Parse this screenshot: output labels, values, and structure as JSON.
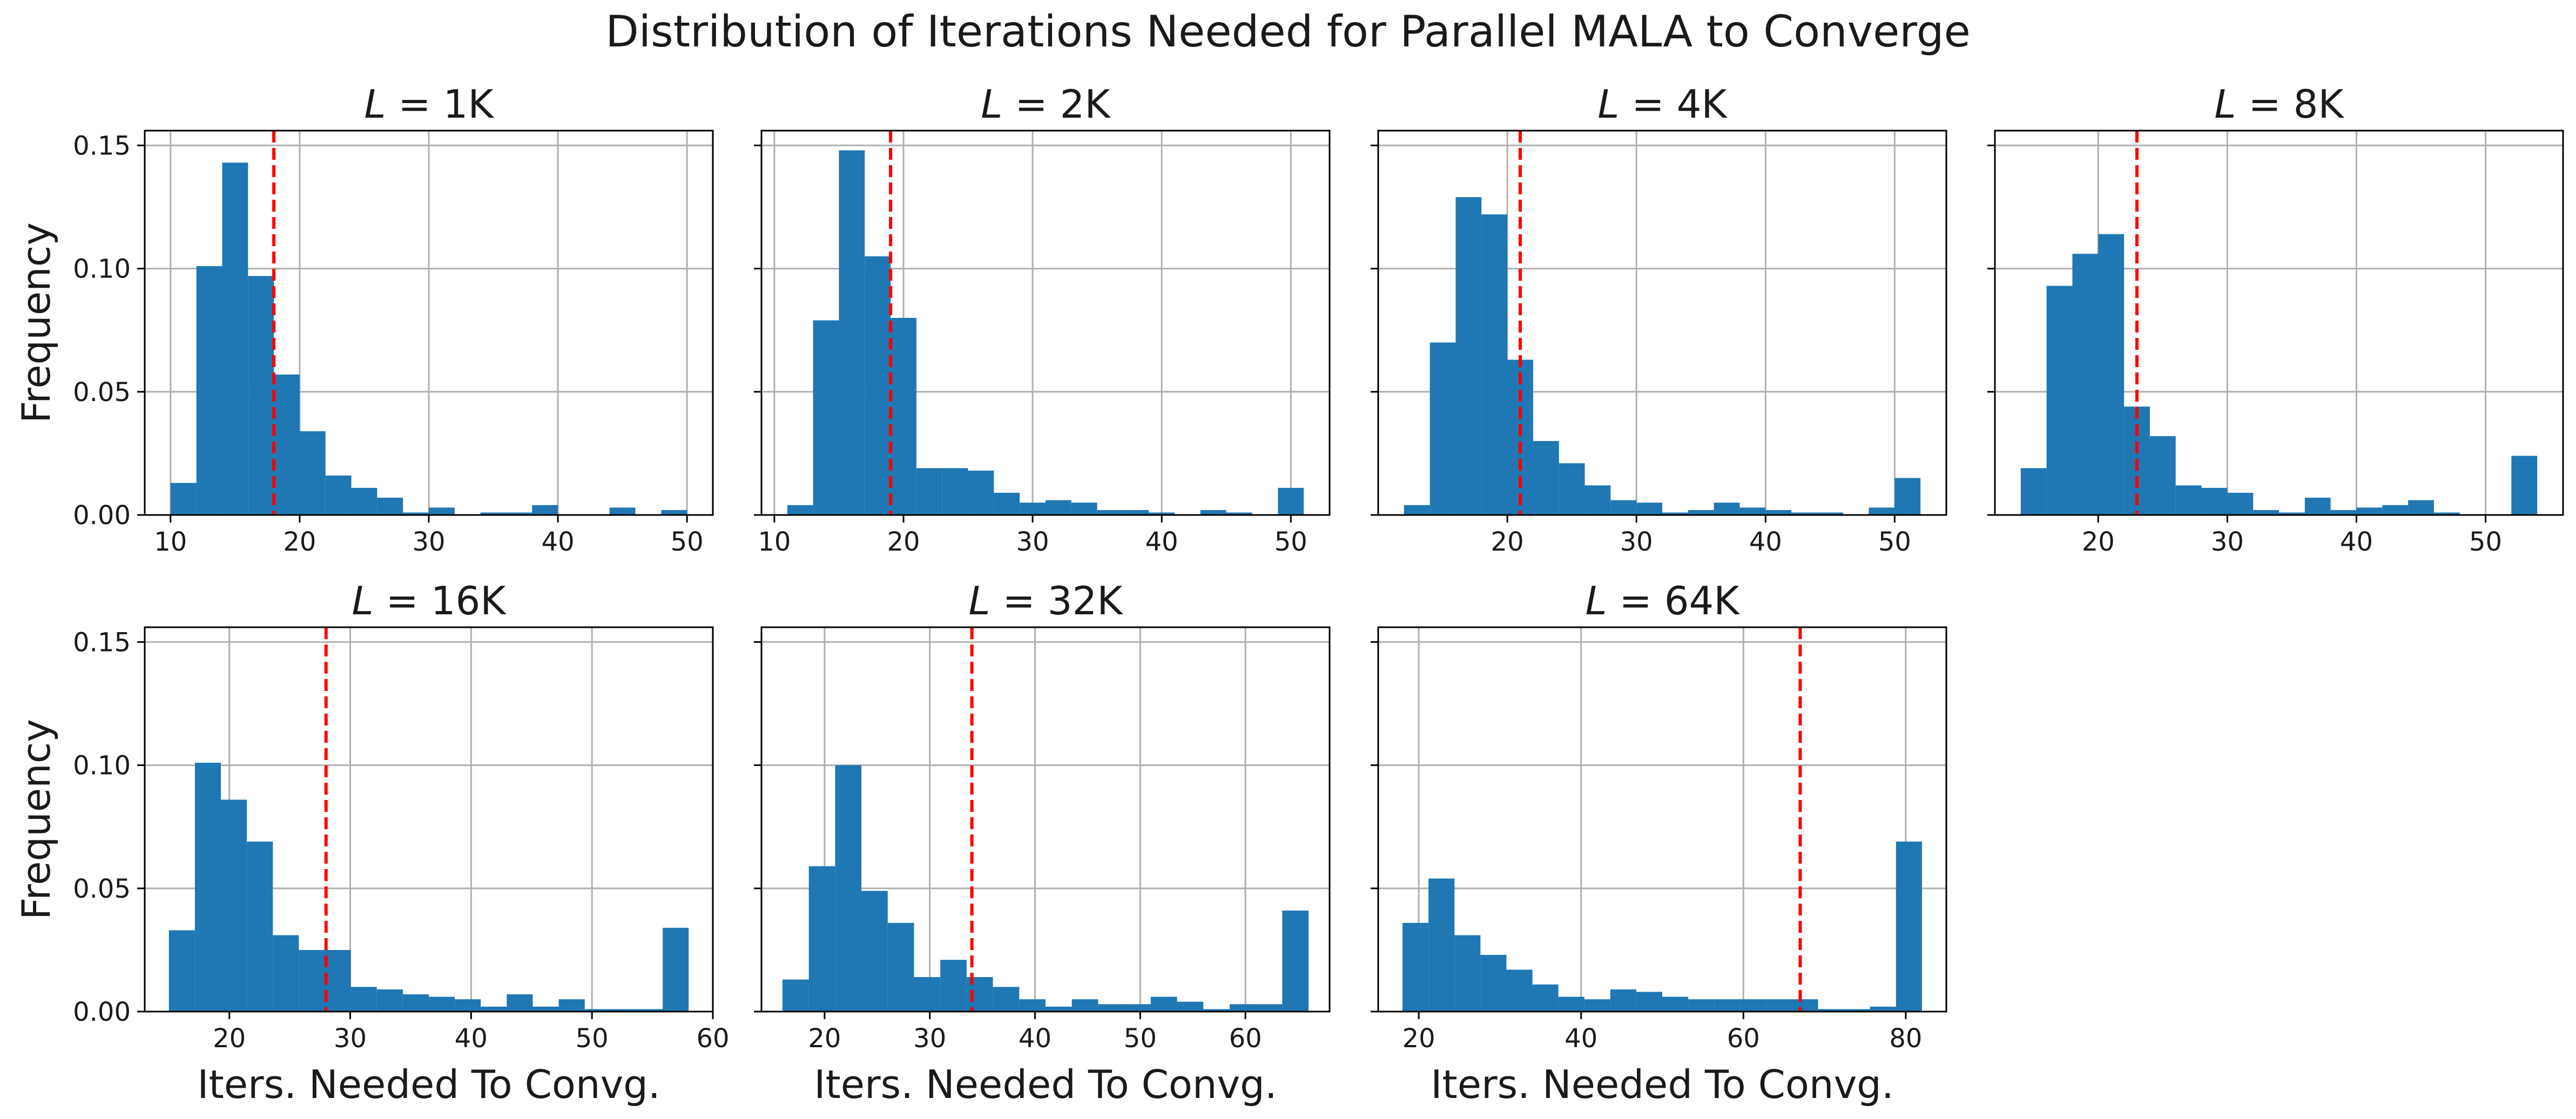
{
  "figure": {
    "title": "Distribution of Iterations Needed for Parallel MALA to Converge",
    "ylabel": "Frequency",
    "xlabel": "Iters. Needed To Convg."
  },
  "colors": {
    "bar": "#1f77b4",
    "median_line": "#ff0000",
    "grid": "#b0b0b0"
  },
  "chart_data": [
    {
      "type": "histogram",
      "title_var": "L",
      "title_value": "1K",
      "xlim": [
        8,
        52
      ],
      "ylim": [
        0,
        0.156
      ],
      "xticks": [
        10,
        20,
        30,
        40,
        50
      ],
      "yticks": [
        0.0,
        0.05,
        0.1,
        0.15
      ],
      "ytick_labels": [
        "0.00",
        "0.05",
        "0.10",
        "0.15"
      ],
      "show_yticklabels": true,
      "bin_edges": [
        10,
        12,
        14,
        16,
        18,
        20,
        22,
        24,
        26,
        28,
        30,
        32,
        34,
        36,
        38,
        40,
        42,
        44,
        46,
        48,
        50
      ],
      "values": [
        0.013,
        0.101,
        0.143,
        0.097,
        0.057,
        0.034,
        0.016,
        0.011,
        0.007,
        0.001,
        0.003,
        0.0,
        0.001,
        0.001,
        0.004,
        0.0,
        0.0,
        0.003,
        0.0,
        0.002
      ],
      "median": 18,
      "xlabel": "",
      "ylabel": "Frequency"
    },
    {
      "type": "histogram",
      "title_var": "L",
      "title_value": "2K",
      "xlim": [
        9,
        53
      ],
      "ylim": [
        0,
        0.156
      ],
      "xticks": [
        10,
        20,
        30,
        40,
        50
      ],
      "yticks": [
        0.0,
        0.05,
        0.1,
        0.15
      ],
      "ytick_labels": [
        "0.00",
        "0.05",
        "0.10",
        "0.15"
      ],
      "show_yticklabels": false,
      "bin_edges": [
        11,
        13,
        15,
        17,
        19,
        21,
        23,
        25,
        27,
        29,
        31,
        33,
        35,
        37,
        39,
        41,
        43,
        45,
        47,
        49,
        51
      ],
      "values": [
        0.004,
        0.079,
        0.148,
        0.105,
        0.08,
        0.019,
        0.019,
        0.018,
        0.009,
        0.005,
        0.006,
        0.005,
        0.002,
        0.002,
        0.001,
        0.0,
        0.002,
        0.001,
        0.0,
        0.011
      ],
      "median": 19,
      "xlabel": "",
      "ylabel": ""
    },
    {
      "type": "histogram",
      "title_var": "L",
      "title_value": "4K",
      "xlim": [
        10,
        54
      ],
      "ylim": [
        0,
        0.156
      ],
      "xticks": [
        20,
        30,
        40,
        50
      ],
      "yticks": [
        0.0,
        0.05,
        0.1,
        0.15
      ],
      "ytick_labels": [
        "0.00",
        "0.05",
        "0.10",
        "0.15"
      ],
      "show_yticklabels": false,
      "bin_edges": [
        12,
        14,
        16,
        18,
        20,
        22,
        24,
        26,
        28,
        30,
        32,
        34,
        36,
        38,
        40,
        42,
        44,
        46,
        48,
        50,
        52
      ],
      "values": [
        0.004,
        0.07,
        0.129,
        0.122,
        0.063,
        0.03,
        0.021,
        0.012,
        0.006,
        0.005,
        0.001,
        0.002,
        0.005,
        0.003,
        0.002,
        0.001,
        0.001,
        0.0,
        0.003,
        0.015
      ],
      "median": 21,
      "xlabel": "",
      "ylabel": ""
    },
    {
      "type": "histogram",
      "title_var": "L",
      "title_value": "8K",
      "xlim": [
        12,
        56
      ],
      "ylim": [
        0,
        0.156
      ],
      "xticks": [
        20,
        30,
        40,
        50
      ],
      "yticks": [
        0.0,
        0.05,
        0.1,
        0.15
      ],
      "ytick_labels": [
        "0.00",
        "0.05",
        "0.10",
        "0.15"
      ],
      "show_yticklabels": false,
      "bin_edges": [
        14,
        16,
        18,
        20,
        22,
        24,
        26,
        28,
        30,
        32,
        34,
        36,
        38,
        40,
        42,
        44,
        46,
        48,
        50,
        52,
        54
      ],
      "values": [
        0.019,
        0.093,
        0.106,
        0.114,
        0.044,
        0.032,
        0.012,
        0.011,
        0.009,
        0.002,
        0.001,
        0.007,
        0.002,
        0.003,
        0.004,
        0.006,
        0.001,
        0.0,
        0.0,
        0.024
      ],
      "median": 23,
      "xlabel": "",
      "ylabel": ""
    },
    {
      "type": "histogram",
      "title_var": "L",
      "title_value": "16K",
      "xlim": [
        13,
        60
      ],
      "ylim": [
        0,
        0.156
      ],
      "xticks": [
        20,
        30,
        40,
        50,
        60
      ],
      "yticks": [
        0.0,
        0.05,
        0.1,
        0.15
      ],
      "ytick_labels": [
        "0.00",
        "0.05",
        "0.10",
        "0.15"
      ],
      "show_yticklabels": true,
      "bin_edges": [
        15,
        17.15,
        19.3,
        21.45,
        23.6,
        25.75,
        27.9,
        30.05,
        32.2,
        34.35,
        36.5,
        38.65,
        40.8,
        42.95,
        45.1,
        47.25,
        49.4,
        51.55,
        53.7,
        55.85,
        58
      ],
      "values": [
        0.033,
        0.101,
        0.086,
        0.069,
        0.031,
        0.025,
        0.025,
        0.01,
        0.009,
        0.007,
        0.006,
        0.005,
        0.002,
        0.007,
        0.002,
        0.005,
        0.001,
        0.001,
        0.001,
        0.034
      ],
      "median": 28,
      "xlabel": "Iters. Needed To Convg.",
      "ylabel": "Frequency"
    },
    {
      "type": "histogram",
      "title_var": "L",
      "title_value": "32K",
      "xlim": [
        14,
        68
      ],
      "ylim": [
        0,
        0.156
      ],
      "xticks": [
        20,
        30,
        40,
        50,
        60
      ],
      "yticks": [
        0.0,
        0.05,
        0.1,
        0.15
      ],
      "ytick_labels": [
        "0.00",
        "0.05",
        "0.10",
        "0.15"
      ],
      "show_yticklabels": false,
      "bin_edges": [
        16,
        18.5,
        21,
        23.5,
        26,
        28.5,
        31,
        33.5,
        36,
        38.5,
        41,
        43.5,
        46,
        48.5,
        51,
        53.5,
        56,
        58.5,
        61,
        63.5,
        66
      ],
      "values": [
        0.013,
        0.059,
        0.1,
        0.049,
        0.036,
        0.014,
        0.021,
        0.014,
        0.01,
        0.005,
        0.002,
        0.005,
        0.003,
        0.003,
        0.006,
        0.004,
        0.001,
        0.003,
        0.003,
        0.041
      ],
      "median": 34,
      "xlabel": "Iters. Needed To Convg.",
      "ylabel": ""
    },
    {
      "type": "histogram",
      "title_var": "L",
      "title_value": "64K",
      "xlim": [
        15,
        85
      ],
      "ylim": [
        0,
        0.156
      ],
      "xticks": [
        20,
        40,
        60,
        80
      ],
      "yticks": [
        0.0,
        0.05,
        0.1,
        0.15
      ],
      "ytick_labels": [
        "0.00",
        "0.05",
        "0.10",
        "0.15"
      ],
      "show_yticklabels": false,
      "bin_edges": [
        18,
        21.2,
        24.4,
        27.6,
        30.8,
        34,
        37.2,
        40.4,
        43.6,
        46.8,
        50,
        53.2,
        56.4,
        59.6,
        62.8,
        66,
        69.2,
        72.4,
        75.6,
        78.8,
        82
      ],
      "values": [
        0.036,
        0.054,
        0.031,
        0.023,
        0.017,
        0.011,
        0.006,
        0.005,
        0.009,
        0.008,
        0.006,
        0.005,
        0.005,
        0.005,
        0.005,
        0.005,
        0.001,
        0.001,
        0.002,
        0.069
      ],
      "median": 67,
      "xlabel": "Iters. Needed To Convg.",
      "ylabel": ""
    }
  ]
}
